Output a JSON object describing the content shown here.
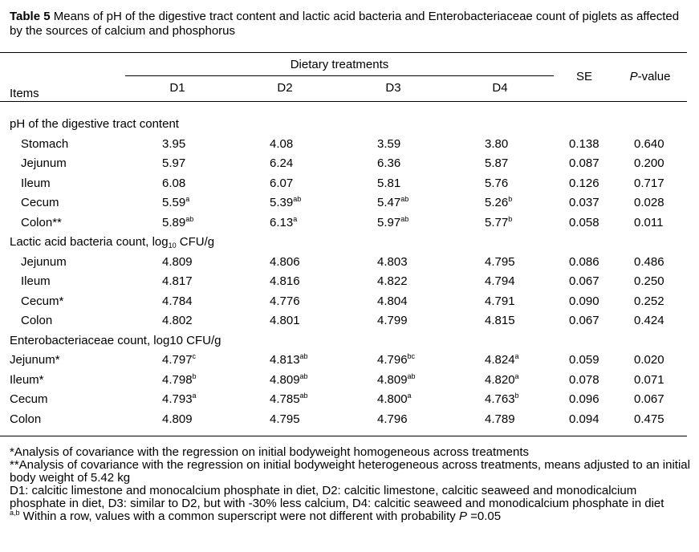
{
  "caption": {
    "label": "Table 5",
    "text": " Means of pH of the digestive tract content and lactic acid bacteria and Enterobacteriaceae count of piglets as affected by the sources of calcium and phosphorus"
  },
  "header": {
    "items": "Items",
    "group": "Dietary treatments",
    "d1": "D1",
    "d2": "D2",
    "d3": "D3",
    "d4": "D4",
    "se": "SE",
    "p_italic": "P",
    "p_rest": "-value"
  },
  "sections": [
    {
      "title_a": "pH of the digestive tract content",
      "title_sub": "",
      "title_b": "",
      "rows": [
        {
          "item": "Stomach",
          "indent": true,
          "d1": "3.95",
          "d1s": "",
          "d2": "4.08",
          "d2s": "",
          "d3": "3.59",
          "d3s": "",
          "d4": "3.80",
          "d4s": "",
          "se": "0.138",
          "p": "0.640"
        },
        {
          "item": "Jejunum",
          "indent": true,
          "d1": "5.97",
          "d1s": "",
          "d2": "6.24",
          "d2s": "",
          "d3": "6.36",
          "d3s": "",
          "d4": "5.87",
          "d4s": "",
          "se": "0.087",
          "p": "0.200"
        },
        {
          "item": "Ileum",
          "indent": true,
          "d1": "6.08",
          "d1s": "",
          "d2": "6.07",
          "d2s": "",
          "d3": "5.81",
          "d3s": "",
          "d4": "5.76",
          "d4s": "",
          "se": "0.126",
          "p": "0.717"
        },
        {
          "item": "Cecum",
          "indent": true,
          "d1": "5.59",
          "d1s": "a",
          "d2": "5.39",
          "d2s": "ab",
          "d3": "5.47",
          "d3s": "ab",
          "d4": "5.26",
          "d4s": "b",
          "se": "0.037",
          "p": "0.028"
        },
        {
          "item": "Colon**",
          "indent": true,
          "d1": "5.89",
          "d1s": "ab",
          "d2": "6.13",
          "d2s": "a",
          "d3": "5.97",
          "d3s": "ab",
          "d4": "5.77",
          "d4s": "b",
          "se": "0.058",
          "p": "0.011"
        }
      ]
    },
    {
      "title_a": "Lactic acid bacteria count, log",
      "title_sub": "10",
      "title_b": " CFU/g",
      "rows": [
        {
          "item": "Jejunum",
          "indent": true,
          "d1": "4.809",
          "d1s": "",
          "d2": "4.806",
          "d2s": "",
          "d3": "4.803",
          "d3s": "",
          "d4": "4.795",
          "d4s": "",
          "se": "0.086",
          "p": "0.486"
        },
        {
          "item": "Ileum",
          "indent": true,
          "d1": "4.817",
          "d1s": "",
          "d2": "4.816",
          "d2s": "",
          "d3": "4.822",
          "d3s": "",
          "d4": "4.794",
          "d4s": "",
          "se": "0.067",
          "p": "0.250"
        },
        {
          "item": "Cecum*",
          "indent": true,
          "d1": "4.784",
          "d1s": "",
          "d2": "4.776",
          "d2s": "",
          "d3": "4.804",
          "d3s": "",
          "d4": "4.791",
          "d4s": "",
          "se": "0.090",
          "p": "0.252"
        },
        {
          "item": "Colon",
          "indent": true,
          "d1": "4.802",
          "d1s": "",
          "d2": "4.801",
          "d2s": "",
          "d3": "4.799",
          "d3s": "",
          "d4": "4.815",
          "d4s": "",
          "se": "0.067",
          "p": "0.424"
        }
      ]
    },
    {
      "title_a": "Enterobacteriaceae count, log10 CFU/g",
      "title_sub": "",
      "title_b": "",
      "rows": [
        {
          "item": "Jejunum*",
          "indent": false,
          "d1": "4.797",
          "d1s": "c",
          "d2": "4.813",
          "d2s": "ab",
          "d3": "4.796",
          "d3s": "bc",
          "d4": "4.824",
          "d4s": "a",
          "se": "0.059",
          "p": "0.020"
        },
        {
          "item": "Ileum*",
          "indent": false,
          "d1": "4.798",
          "d1s": "b",
          "d2": "4.809",
          "d2s": "ab",
          "d3": "4.809",
          "d3s": "ab",
          "d4": "4.820",
          "d4s": "a",
          "se": "0.078",
          "p": "0.071"
        },
        {
          "item": "Cecum",
          "indent": false,
          "d1": "4.793",
          "d1s": "a",
          "d2": "4.785",
          "d2s": "ab",
          "d3": "4.800",
          "d3s": "a",
          "d4": "4.763",
          "d4s": "b",
          "se": "0.096",
          "p": "0.067"
        },
        {
          "item": "Colon",
          "indent": false,
          "d1": "4.809",
          "d1s": "",
          "d2": "4.795",
          "d2s": "",
          "d3": "4.796",
          "d3s": "",
          "d4": "4.789",
          "d4s": "",
          "se": "0.094",
          "p": "0.475"
        }
      ]
    }
  ],
  "notes": {
    "n1": "*Analysis of covariance with the regression on initial bodyweight homogeneous across treatments",
    "n2": "**Analysis of covariance with the regression on initial bodyweight heterogeneous across treatments, means adjusted to an initial body weight of 5.42 kg",
    "n3": "D1: calcitic limestone and monocalcium phosphate in diet, D2: calcitic limestone, calcitic seaweed and monodicalcium phosphate in diet, D3: similar to D2, but with -30% less calcium, D4: calcitic seaweed and monodicalcium phosphate in diet",
    "n4_sup": "a,b",
    "n4_text": " Within a row, values with a common superscript were not different with probability ",
    "n4_italic": "P",
    "n4_end": " =0.05"
  }
}
